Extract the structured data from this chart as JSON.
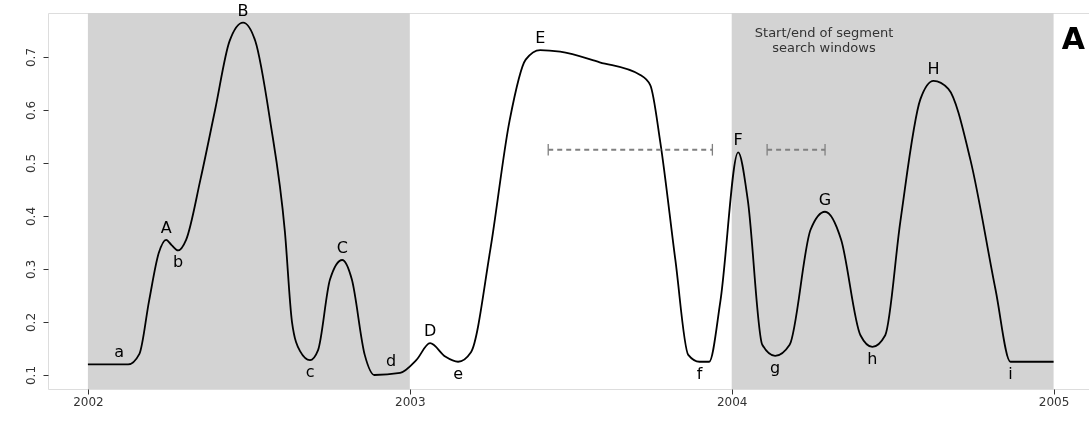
{
  "chart_data": {
    "type": "line",
    "xlim": [
      2001.876,
      2005.11
    ],
    "ylim": [
      0.0736,
      0.783
    ],
    "xticks": [
      2002,
      2003,
      2004,
      2005
    ],
    "yticks": [
      0.1,
      0.2,
      0.3,
      0.4,
      0.5,
      0.6,
      0.7
    ],
    "grid": false,
    "marker": "none",
    "series": [
      {
        "color": "#000000",
        "line_style": "solid",
        "x": [
          2002.0,
          2002.125,
          2002.16,
          2002.19,
          2002.22,
          2002.243,
          2002.26,
          2002.28,
          2002.305,
          2002.35,
          2002.395,
          2002.44,
          2002.482,
          2002.52,
          2002.566,
          2002.612,
          2002.634,
          2002.659,
          2002.69,
          2002.715,
          2002.752,
          2002.79,
          2002.82,
          2002.86,
          2002.89,
          2002.97,
          2003.02,
          2003.063,
          2003.11,
          2003.15,
          2003.19,
          2003.25,
          2003.31,
          2003.36,
          2003.405,
          2003.467,
          2003.59,
          2003.716,
          2003.747,
          2003.778,
          2003.825,
          2003.865,
          2003.9,
          2003.93,
          2003.965,
          2004.02,
          2004.05,
          2004.095,
          2004.135,
          2004.18,
          2004.245,
          2004.29,
          2004.34,
          2004.4,
          2004.437,
          2004.477,
          2004.524,
          2004.586,
          2004.627,
          2004.673,
          2004.742,
          2004.82,
          2004.866,
          2005.0
        ],
        "values": [
          0.12,
          0.12,
          0.14,
          0.24,
          0.33,
          0.355,
          0.345,
          0.335,
          0.355,
          0.47,
          0.6,
          0.73,
          0.765,
          0.73,
          0.58,
          0.37,
          0.2,
          0.145,
          0.128,
          0.147,
          0.28,
          0.317,
          0.28,
          0.138,
          0.1,
          0.104,
          0.128,
          0.16,
          0.135,
          0.125,
          0.143,
          0.336,
          0.58,
          0.695,
          0.713,
          0.71,
          0.69,
          0.666,
          0.647,
          0.54,
          0.317,
          0.138,
          0.125,
          0.125,
          0.24,
          0.52,
          0.43,
          0.157,
          0.136,
          0.157,
          0.374,
          0.408,
          0.355,
          0.175,
          0.153,
          0.175,
          0.39,
          0.62,
          0.655,
          0.64,
          0.505,
          0.26,
          0.125,
          0.125
        ]
      },
      {
        "color": "#808080",
        "line_style": "dashed",
        "x": [
          2003.43,
          2003.94
        ],
        "values": [
          0.525,
          0.525
        ],
        "errors": [
          0.011,
          0.011
        ]
      },
      {
        "color": "#808080",
        "line_style": "dashed",
        "x": [
          2004.11,
          2004.29
        ],
        "values": [
          0.525,
          0.525
        ],
        "errors": [
          0.011,
          0.011
        ]
      }
    ],
    "bands": [
      {
        "axis": "x",
        "from": 2002,
        "to": 2003,
        "color": "#d3d3d3"
      },
      {
        "axis": "x",
        "from": 2004,
        "to": 2005,
        "color": "#d3d3d3"
      }
    ],
    "annotations": [
      {
        "text": "a",
        "x": 2002.125,
        "y": 0.12
      },
      {
        "text": "A",
        "x": 2002.243,
        "y": 0.355
      },
      {
        "text": "b",
        "x": 2002.28,
        "y": 0.335
      },
      {
        "text": "B",
        "x": 2002.482,
        "y": 0.765
      },
      {
        "text": "c",
        "x": 2002.69,
        "y": 0.128
      },
      {
        "text": "C",
        "x": 2002.79,
        "y": 0.317
      },
      {
        "text": "d",
        "x": 2002.97,
        "y": 0.104
      },
      {
        "text": "D",
        "x": 2003.063,
        "y": 0.16
      },
      {
        "text": "e",
        "x": 2003.15,
        "y": 0.125
      },
      {
        "text": "E",
        "x": 2003.405,
        "y": 0.713
      },
      {
        "text": "f",
        "x": 2003.9,
        "y": 0.125
      },
      {
        "text": "F",
        "x": 2004.02,
        "y": 0.52
      },
      {
        "text": "g",
        "x": 2004.135,
        "y": 0.136
      },
      {
        "text": "G",
        "x": 2004.29,
        "y": 0.408
      },
      {
        "text": "h",
        "x": 2004.437,
        "y": 0.153
      },
      {
        "text": "H",
        "x": 2004.627,
        "y": 0.655
      },
      {
        "text": "i",
        "x": 2004.866,
        "y": 0.125
      },
      "Start/end of segment\nsearch windows",
      "A"
    ]
  }
}
